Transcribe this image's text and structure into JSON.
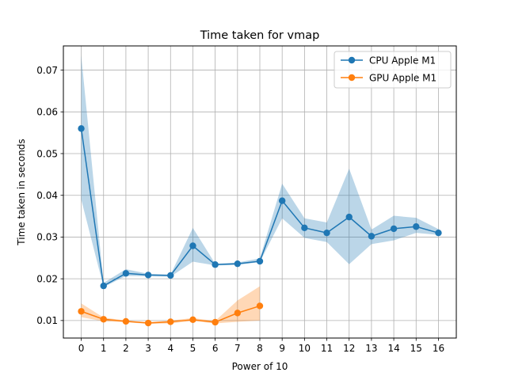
{
  "chart_data": {
    "type": "line",
    "title": "Time taken for vmap",
    "xlabel": "Power of 10",
    "ylabel": "Time taken in seconds",
    "x": [
      0,
      1,
      2,
      3,
      4,
      5,
      6,
      7,
      8,
      9,
      10,
      11,
      12,
      13,
      14,
      15,
      16
    ],
    "xlim": [
      -0.8,
      16.8
    ],
    "ylim": [
      0.0058,
      0.0758
    ],
    "xticks": [
      "0",
      "1",
      "2",
      "3",
      "4",
      "5",
      "6",
      "7",
      "8",
      "9",
      "10",
      "11",
      "12",
      "13",
      "14",
      "15",
      "16"
    ],
    "yticks": [
      0.01,
      0.02,
      0.03,
      0.04,
      0.05,
      0.06,
      0.07
    ],
    "ytick_labels": [
      "0.01",
      "0.02",
      "0.03",
      "0.04",
      "0.05",
      "0.06",
      "0.07"
    ],
    "grid": true,
    "legend_position": "top-right",
    "series": [
      {
        "name": "CPU Apple M1",
        "color": "#1f77b4",
        "band_color": "#1f77b4",
        "x": [
          0,
          1,
          2,
          3,
          4,
          5,
          6,
          7,
          8,
          9,
          10,
          11,
          12,
          13,
          14,
          15,
          16
        ],
        "values": [
          0.056,
          0.0183,
          0.0213,
          0.0209,
          0.0208,
          0.0279,
          0.0234,
          0.0236,
          0.0242,
          0.0387,
          0.0322,
          0.031,
          0.0348,
          0.0302,
          0.032,
          0.0325,
          0.031
        ],
        "lower": [
          0.039,
          0.018,
          0.0207,
          0.0206,
          0.0205,
          0.0241,
          0.0232,
          0.0233,
          0.024,
          0.0345,
          0.0298,
          0.0288,
          0.0235,
          0.0283,
          0.0292,
          0.031,
          0.0305
        ],
        "upper": [
          0.0735,
          0.019,
          0.0223,
          0.0212,
          0.021,
          0.0322,
          0.0236,
          0.0239,
          0.0249,
          0.0428,
          0.0345,
          0.0335,
          0.0464,
          0.0318,
          0.0351,
          0.0346,
          0.0319
        ]
      },
      {
        "name": "GPU Apple M1",
        "color": "#ff7f0e",
        "band_color": "#ff7f0e",
        "x": [
          0,
          1,
          2,
          3,
          4,
          5,
          6,
          7,
          8
        ],
        "values": [
          0.0122,
          0.0103,
          0.0098,
          0.0094,
          0.0097,
          0.0102,
          0.0096,
          0.0118,
          0.0135
        ],
        "lower": [
          0.0108,
          0.0098,
          0.0096,
          0.0092,
          0.0093,
          0.0099,
          0.0093,
          0.0097,
          0.01
        ],
        "upper": [
          0.0141,
          0.0107,
          0.01,
          0.0096,
          0.01,
          0.0106,
          0.0099,
          0.0148,
          0.0182
        ]
      }
    ]
  }
}
